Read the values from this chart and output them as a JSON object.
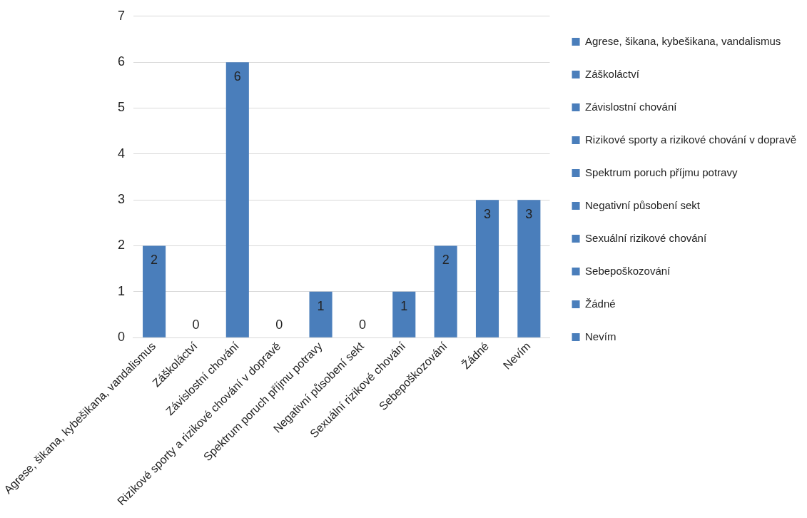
{
  "chart_data": {
    "type": "bar",
    "categories": [
      "Agrese, šikana, kybešikana, vandalismus",
      "Záškoláctví",
      "Závislostní chování",
      "Rizikové sporty a rizikové chování v dopravě",
      "Spektrum poruch příjmu potravy",
      "Negativní působení sekt",
      "Sexuální rizikové chování",
      "Sebepoškozování",
      "Žádné",
      "Nevím"
    ],
    "series": [
      {
        "name": "Agrese, šikana, kybešikana, vandalismus",
        "color": "#4a7ebb",
        "values": [
          2,
          null,
          null,
          null,
          null,
          null,
          null,
          null,
          null,
          null
        ]
      },
      {
        "name": "Záškoláctví",
        "color": "#4a7ebb",
        "values": [
          null,
          0,
          null,
          null,
          null,
          null,
          null,
          null,
          null,
          null
        ]
      },
      {
        "name": "Závislostní chování",
        "color": "#4a7ebb",
        "values": [
          null,
          null,
          6,
          null,
          null,
          null,
          null,
          null,
          null,
          null
        ]
      },
      {
        "name": "Rizikové sporty a rizikové chování v dopravě",
        "color": "#4a7ebb",
        "values": [
          null,
          null,
          null,
          0,
          null,
          null,
          null,
          null,
          null,
          null
        ]
      },
      {
        "name": "Spektrum poruch příjmu potravy",
        "color": "#4a7ebb",
        "values": [
          null,
          null,
          null,
          null,
          1,
          null,
          null,
          null,
          null,
          null
        ]
      },
      {
        "name": "Negativní působení sekt",
        "color": "#4a7ebb",
        "values": [
          null,
          null,
          null,
          null,
          null,
          0,
          null,
          null,
          null,
          null
        ]
      },
      {
        "name": "Sexuální rizikové chování",
        "color": "#4a7ebb",
        "values": [
          null,
          null,
          null,
          null,
          null,
          null,
          1,
          null,
          null,
          null
        ]
      },
      {
        "name": "Sebepoškozování",
        "color": "#4a7ebb",
        "values": [
          null,
          null,
          null,
          null,
          null,
          null,
          null,
          2,
          null,
          null
        ]
      },
      {
        "name": "Žádné",
        "color": "#4a7ebb",
        "values": [
          null,
          null,
          null,
          null,
          null,
          null,
          null,
          null,
          3,
          null
        ]
      },
      {
        "name": "Nevím",
        "color": "#4a7ebb",
        "values": [
          null,
          null,
          null,
          null,
          null,
          null,
          null,
          null,
          null,
          3
        ]
      }
    ],
    "ylim": [
      0,
      7
    ],
    "yticks": [
      0,
      1,
      2,
      3,
      4,
      5,
      6,
      7
    ],
    "grid": "y",
    "legend": "right",
    "data_labels": true
  }
}
